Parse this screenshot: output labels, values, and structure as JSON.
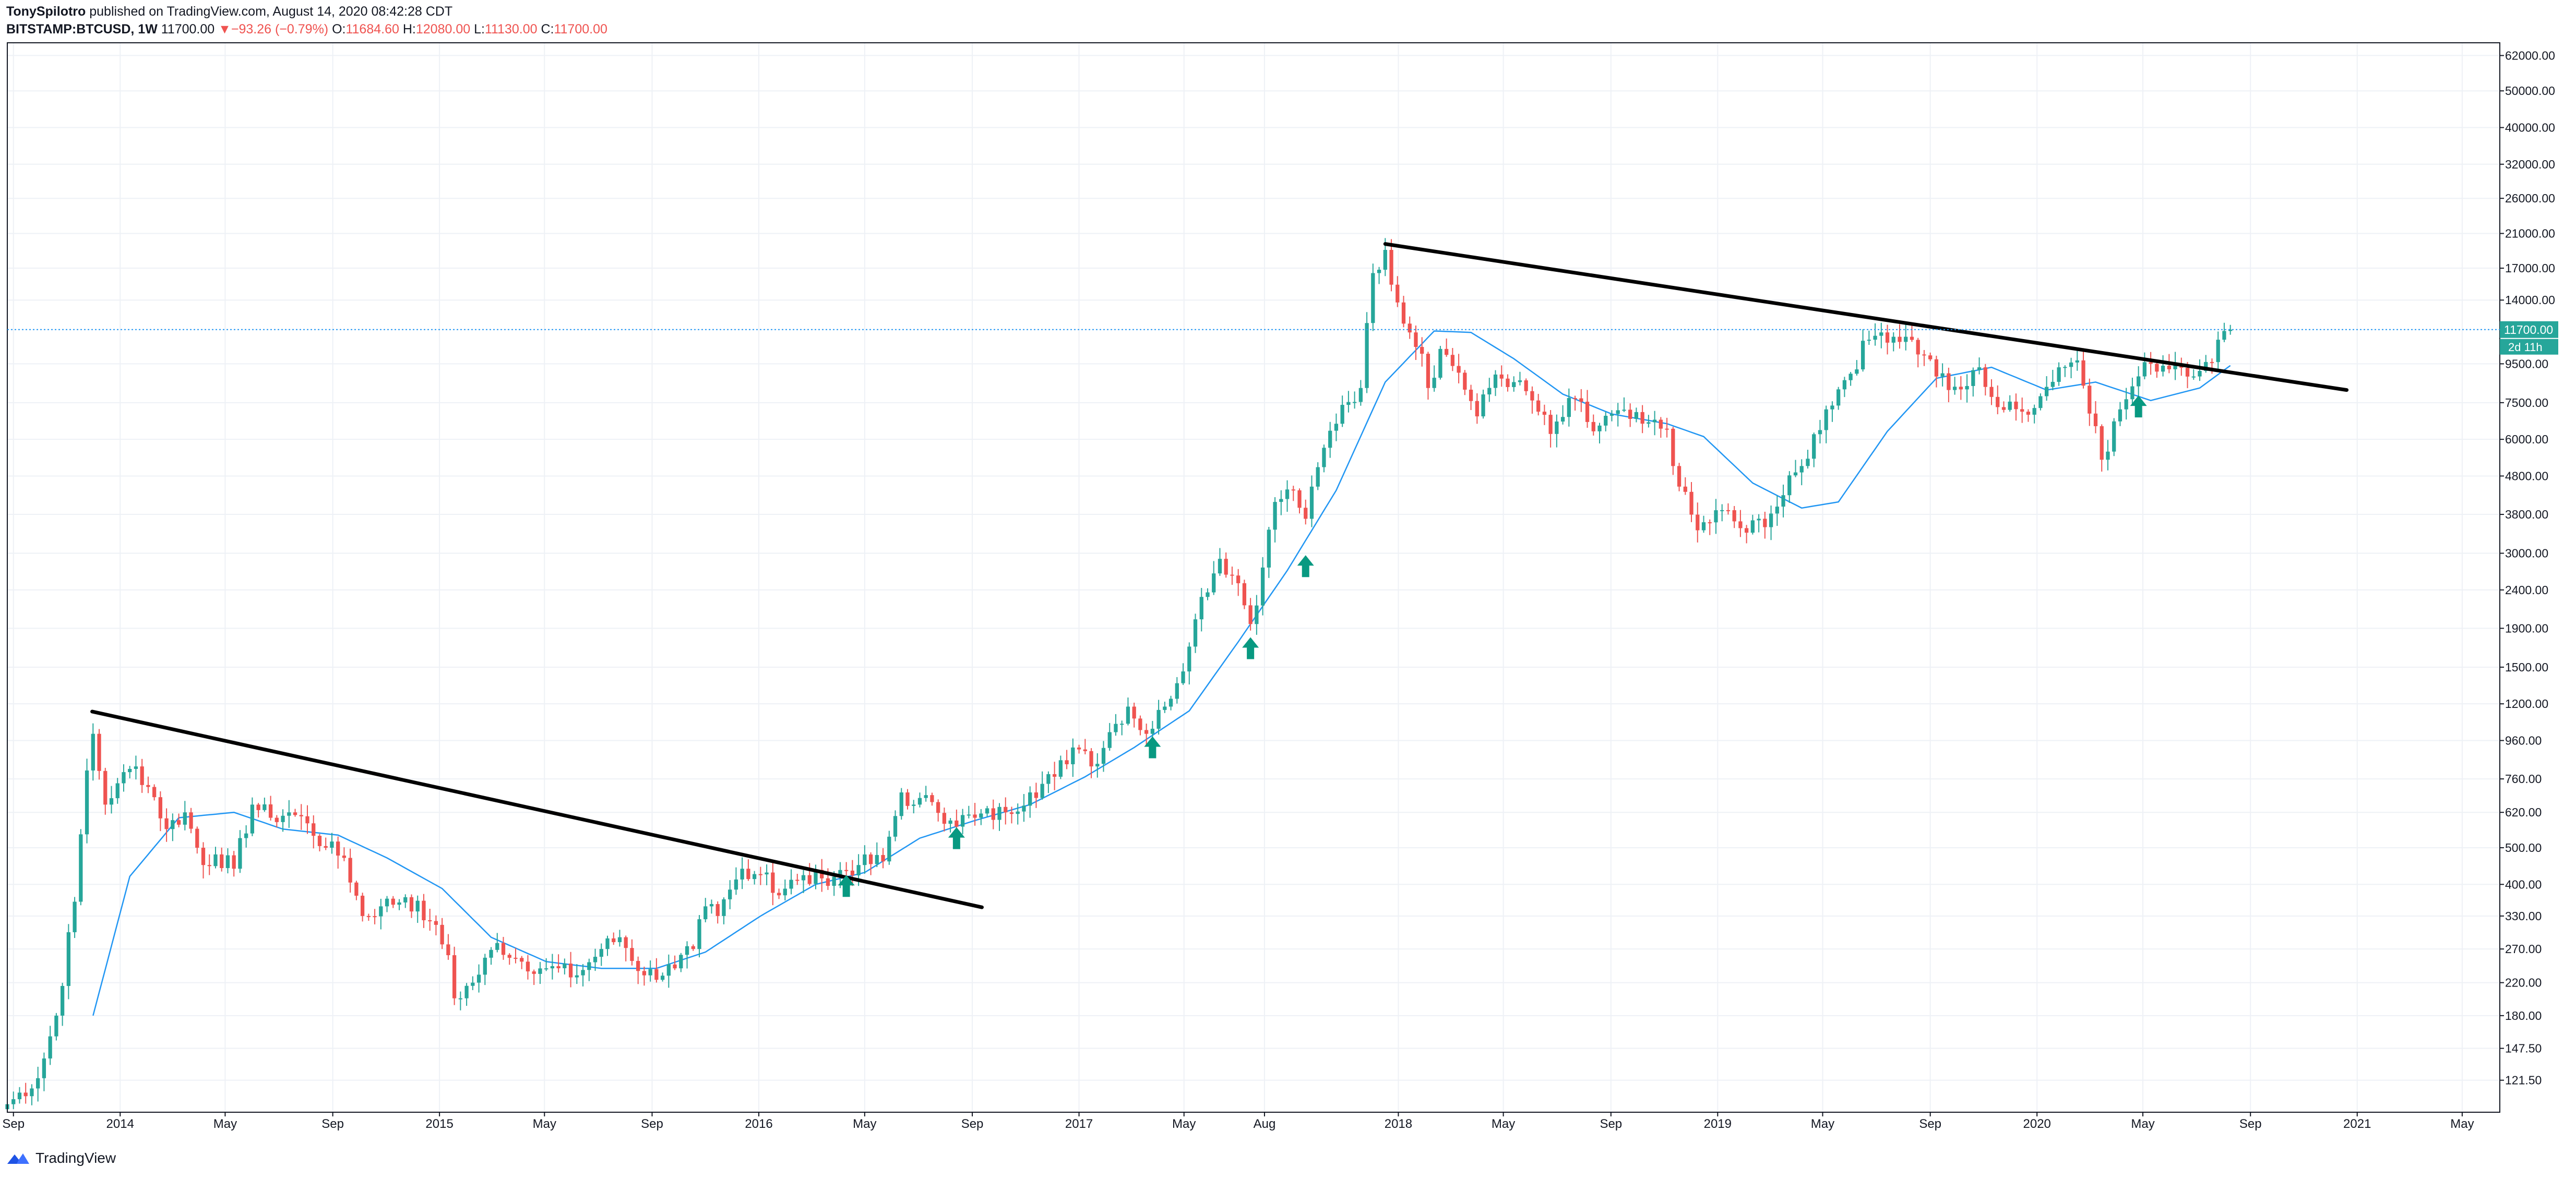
{
  "header": {
    "author": "TonySpilotro",
    "published_text": "published on TradingView.com, August 14, 2020 08:42:28 CDT",
    "symbol": "BITSTAMP:BTCUSD, 1W",
    "last": "11700.00",
    "change_arrow": "▼",
    "change": "−93.26 (−0.79%)",
    "open_label": "O:",
    "open": "11684.60",
    "high_label": "H:",
    "high": "12080.00",
    "low_label": "L:",
    "low": "11130.00",
    "close_label": "C:",
    "close": "11700.00"
  },
  "footer": {
    "brand": "TradingView",
    "logo_icon": "tradingview-logo-icon"
  },
  "colors": {
    "up": "#26a69a",
    "down": "#ef5350",
    "ma": "#2196f3",
    "trend": "#000000",
    "arrow": "#089981",
    "grid": "#eef1f6",
    "price_tag": "#26a69a"
  },
  "chart_data": {
    "type": "candlestick",
    "interval": "1W",
    "scale": "log",
    "grid": true,
    "current_price": 11700.0,
    "current_price_label": "11700.00",
    "countdown_label": "2d 11h",
    "y_ticks": [
      121.5,
      147.5,
      180.0,
      220.0,
      270.0,
      330.0,
      400.0,
      500.0,
      620.0,
      760.0,
      960.0,
      1200.0,
      1500.0,
      1900.0,
      2400.0,
      3000.0,
      3800.0,
      4800.0,
      6000.0,
      7500.0,
      9500.0,
      11700.0,
      14000.0,
      17000.0,
      21000.0,
      26000.0,
      32000.0,
      40000.0,
      50000.0,
      62000.0
    ],
    "y_tick_labels": [
      "121.50",
      "147.50",
      "180.00",
      "220.00",
      "270.00",
      "330.00",
      "400.00",
      "500.00",
      "620.00",
      "760.00",
      "960.00",
      "1200.00",
      "1500.00",
      "1900.00",
      "2400.00",
      "3000.00",
      "3800.00",
      "4800.00",
      "6000.00",
      "7500.00",
      "9500.00",
      "11700.00",
      "14000.00",
      "17000.00",
      "21000.00",
      "26000.00",
      "32000.00",
      "40000.00",
      "50000.00",
      "62000.00"
    ],
    "x_ticks": [
      {
        "label": "Sep",
        "date": "2013-09-01"
      },
      {
        "label": "2014",
        "date": "2014-01-01"
      },
      {
        "label": "May",
        "date": "2014-05-01"
      },
      {
        "label": "Sep",
        "date": "2014-09-01"
      },
      {
        "label": "2015",
        "date": "2015-01-01"
      },
      {
        "label": "May",
        "date": "2015-05-01"
      },
      {
        "label": "Sep",
        "date": "2015-09-01"
      },
      {
        "label": "2016",
        "date": "2016-01-01"
      },
      {
        "label": "May",
        "date": "2016-05-01"
      },
      {
        "label": "Sep",
        "date": "2016-09-01"
      },
      {
        "label": "2017",
        "date": "2017-01-01"
      },
      {
        "label": "May",
        "date": "2017-05-01"
      },
      {
        "label": "Aug",
        "date": "2017-08-01"
      },
      {
        "label": "2018",
        "date": "2018-01-01"
      },
      {
        "label": "May",
        "date": "2018-05-01"
      },
      {
        "label": "Sep",
        "date": "2018-09-01"
      },
      {
        "label": "2019",
        "date": "2019-01-01"
      },
      {
        "label": "May",
        "date": "2019-05-01"
      },
      {
        "label": "Sep",
        "date": "2019-09-01"
      },
      {
        "label": "2020",
        "date": "2020-01-01"
      },
      {
        "label": "May",
        "date": "2020-05-01"
      },
      {
        "label": "Sep",
        "date": "2020-09-01"
      },
      {
        "label": "2021",
        "date": "2021-01-01"
      },
      {
        "label": "May",
        "date": "2021-05-01"
      }
    ],
    "close_anchors": [
      [
        "2013-08-25",
        105
      ],
      [
        "2013-09-29",
        123
      ],
      [
        "2013-10-20",
        180
      ],
      [
        "2013-11-10",
        360
      ],
      [
        "2013-11-24",
        800
      ],
      [
        "2013-12-01",
        1000
      ],
      [
        "2013-12-15",
        650
      ],
      [
        "2013-12-29",
        740
      ],
      [
        "2014-01-19",
        820
      ],
      [
        "2014-02-09",
        680
      ],
      [
        "2014-02-23",
        560
      ],
      [
        "2014-03-16",
        620
      ],
      [
        "2014-04-06",
        450
      ],
      [
        "2014-04-20",
        480
      ],
      [
        "2014-05-11",
        440
      ],
      [
        "2014-06-01",
        650
      ],
      [
        "2014-06-22",
        600
      ],
      [
        "2014-07-13",
        620
      ],
      [
        "2014-08-03",
        580
      ],
      [
        "2014-08-24",
        500
      ],
      [
        "2014-09-14",
        470
      ],
      [
        "2014-10-05",
        330
      ],
      [
        "2014-10-26",
        350
      ],
      [
        "2014-11-23",
        370
      ],
      [
        "2014-12-21",
        320
      ],
      [
        "2015-01-11",
        260
      ],
      [
        "2015-01-18",
        200
      ],
      [
        "2015-02-08",
        220
      ],
      [
        "2015-03-08",
        280
      ],
      [
        "2015-04-05",
        250
      ],
      [
        "2015-05-03",
        240
      ],
      [
        "2015-06-07",
        230
      ],
      [
        "2015-07-05",
        270
      ],
      [
        "2015-07-26",
        290
      ],
      [
        "2015-08-23",
        230
      ],
      [
        "2015-09-27",
        240
      ],
      [
        "2015-10-18",
        270
      ],
      [
        "2015-11-01",
        350
      ],
      [
        "2015-11-15",
        330
      ],
      [
        "2015-12-13",
        440
      ],
      [
        "2016-01-10",
        430
      ],
      [
        "2016-01-17",
        380
      ],
      [
        "2016-02-14",
        410
      ],
      [
        "2016-03-13",
        415
      ],
      [
        "2016-04-24",
        450
      ],
      [
        "2016-05-22",
        460
      ],
      [
        "2016-06-12",
        700
      ],
      [
        "2016-06-26",
        650
      ],
      [
        "2016-07-17",
        660
      ],
      [
        "2016-08-07",
        590
      ],
      [
        "2016-09-04",
        600
      ],
      [
        "2016-10-09",
        620
      ],
      [
        "2016-11-06",
        700
      ],
      [
        "2016-12-04",
        770
      ],
      [
        "2016-12-25",
        920
      ],
      [
        "2017-01-08",
        900
      ],
      [
        "2017-01-15",
        820
      ],
      [
        "2017-02-05",
        1010
      ],
      [
        "2017-02-26",
        1180
      ],
      [
        "2017-03-19",
        1000
      ],
      [
        "2017-04-09",
        1180
      ],
      [
        "2017-05-07",
        1700
      ],
      [
        "2017-05-21",
        2300
      ],
      [
        "2017-06-11",
        2900
      ],
      [
        "2017-07-02",
        2500
      ],
      [
        "2017-07-16",
        1950
      ],
      [
        "2017-07-30",
        2750
      ],
      [
        "2017-08-13",
        4100
      ],
      [
        "2017-09-03",
        4400
      ],
      [
        "2017-09-17",
        3700
      ],
      [
        "2017-10-08",
        5700
      ],
      [
        "2017-10-29",
        7400
      ],
      [
        "2017-11-19",
        8200
      ],
      [
        "2017-12-03",
        16500
      ],
      [
        "2017-12-17",
        19000
      ],
      [
        "2017-12-31",
        13800
      ],
      [
        "2018-01-14",
        11500
      ],
      [
        "2018-01-28",
        10100
      ],
      [
        "2018-02-04",
        8200
      ],
      [
        "2018-02-18",
        10400
      ],
      [
        "2018-03-11",
        9000
      ],
      [
        "2018-04-01",
        6900
      ],
      [
        "2018-04-22",
        8900
      ],
      [
        "2018-05-13",
        8500
      ],
      [
        "2018-06-03",
        7600
      ],
      [
        "2018-06-24",
        6200
      ],
      [
        "2018-07-22",
        7700
      ],
      [
        "2018-08-12",
        6300
      ],
      [
        "2018-09-02",
        7000
      ],
      [
        "2018-10-07",
        6600
      ],
      [
        "2018-11-04",
        6400
      ],
      [
        "2018-11-18",
        4500
      ],
      [
        "2018-12-09",
        3450
      ],
      [
        "2019-01-06",
        3900
      ],
      [
        "2019-02-03",
        3400
      ],
      [
        "2019-03-03",
        3820
      ],
      [
        "2019-04-07",
        5100
      ],
      [
        "2019-05-05",
        7200
      ],
      [
        "2019-05-26",
        8600
      ],
      [
        "2019-06-23",
        11000
      ],
      [
        "2019-07-07",
        11500
      ],
      [
        "2019-08-04",
        11200
      ],
      [
        "2019-08-25",
        10000
      ],
      [
        "2019-09-22",
        8100
      ],
      [
        "2019-10-13",
        8300
      ],
      [
        "2019-10-27",
        9300
      ],
      [
        "2019-11-17",
        7300
      ],
      [
        "2019-12-15",
        7100
      ],
      [
        "2020-01-05",
        7800
      ],
      [
        "2020-01-26",
        9300
      ],
      [
        "2020-02-16",
        9700
      ],
      [
        "2020-03-08",
        6500
      ],
      [
        "2020-03-15",
        5300
      ],
      [
        "2020-04-05",
        7200
      ],
      [
        "2020-04-26",
        8800
      ],
      [
        "2020-05-10",
        9500
      ],
      [
        "2020-06-07",
        9500
      ],
      [
        "2020-07-05",
        9100
      ],
      [
        "2020-07-19",
        9600
      ],
      [
        "2020-07-26",
        11000
      ],
      [
        "2020-08-02",
        11600
      ],
      [
        "2020-08-09",
        11700
      ]
    ],
    "moving_average_anchors": [
      [
        "2013-12-01",
        180
      ],
      [
        "2014-01-12",
        420
      ],
      [
        "2014-03-09",
        600
      ],
      [
        "2014-05-11",
        620
      ],
      [
        "2014-07-06",
        560
      ],
      [
        "2014-09-07",
        540
      ],
      [
        "2014-11-02",
        470
      ],
      [
        "2015-01-04",
        390
      ],
      [
        "2015-03-01",
        290
      ],
      [
        "2015-05-03",
        250
      ],
      [
        "2015-07-05",
        240
      ],
      [
        "2015-09-06",
        240
      ],
      [
        "2015-11-01",
        265
      ],
      [
        "2016-01-03",
        330
      ],
      [
        "2016-03-06",
        400
      ],
      [
        "2016-05-01",
        430
      ],
      [
        "2016-07-03",
        530
      ],
      [
        "2016-09-04",
        590
      ],
      [
        "2016-11-06",
        650
      ],
      [
        "2017-01-08",
        770
      ],
      [
        "2017-03-05",
        920
      ],
      [
        "2017-05-07",
        1150
      ],
      [
        "2017-07-02",
        1750
      ],
      [
        "2017-08-27",
        2700
      ],
      [
        "2017-10-22",
        4400
      ],
      [
        "2017-12-17",
        8500
      ],
      [
        "2018-02-11",
        11600
      ],
      [
        "2018-03-25",
        11500
      ],
      [
        "2018-05-13",
        9800
      ],
      [
        "2018-07-08",
        7900
      ],
      [
        "2018-09-02",
        7000
      ],
      [
        "2018-11-04",
        6600
      ],
      [
        "2018-12-16",
        6100
      ],
      [
        "2019-02-10",
        4600
      ],
      [
        "2019-04-07",
        3950
      ],
      [
        "2019-05-19",
        4100
      ],
      [
        "2019-07-14",
        6300
      ],
      [
        "2019-09-08",
        8700
      ],
      [
        "2019-11-10",
        9300
      ],
      [
        "2020-01-12",
        8100
      ],
      [
        "2020-03-08",
        8500
      ],
      [
        "2020-05-10",
        7600
      ],
      [
        "2020-07-05",
        8200
      ],
      [
        "2020-08-09",
        9400
      ]
    ],
    "trendlines": [
      {
        "from": [
          "2013-11-30",
          1145
        ],
        "to": [
          "2016-09-12",
          348
        ]
      },
      {
        "from": [
          "2017-12-17",
          19700
        ],
        "to": [
          "2020-12-20",
          8100
        ]
      }
    ],
    "support_arrows": [
      {
        "date": "2016-04-10",
        "price": 400
      },
      {
        "date": "2016-08-14",
        "price": 535
      },
      {
        "date": "2017-03-26",
        "price": 930
      },
      {
        "date": "2017-07-16",
        "price": 1700
      },
      {
        "date": "2017-09-17",
        "price": 2800
      },
      {
        "date": "2020-04-26",
        "price": 7400
      }
    ],
    "x_range": [
      "2013-08-25",
      "2021-06-13"
    ],
    "y_range": [
      100,
      67000
    ]
  }
}
